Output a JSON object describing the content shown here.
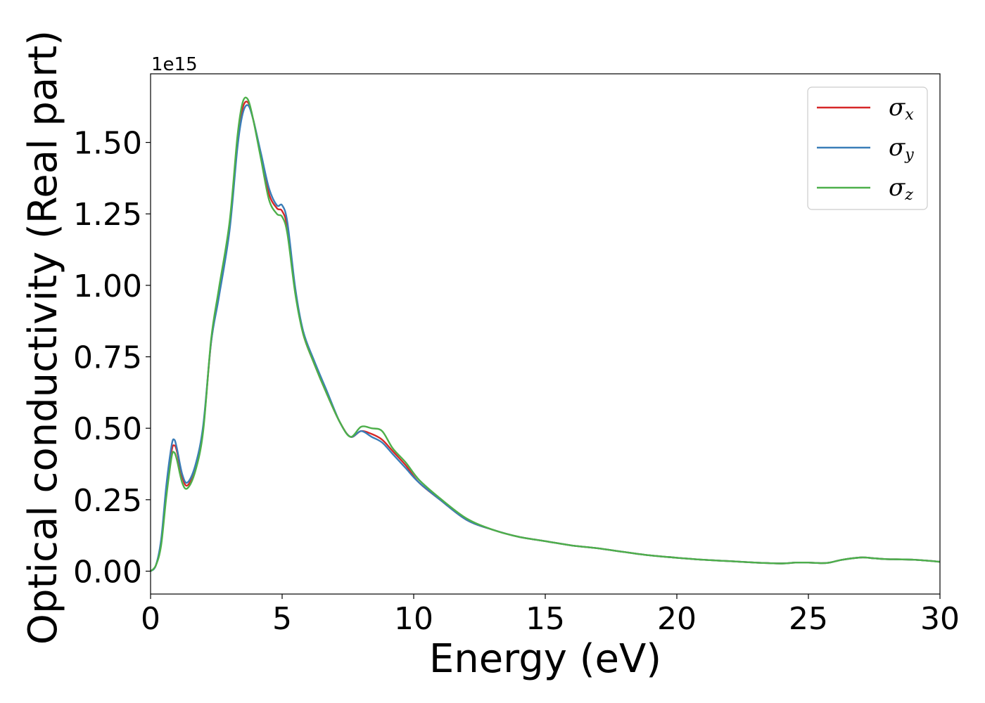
{
  "chart_data": {
    "type": "line",
    "xlabel": "Energy (eV)",
    "ylabel": "Optical conductivity (Real part)",
    "y_offset_text": "1e15",
    "xlim": [
      0,
      30
    ],
    "ylim": [
      -0.08,
      1.74
    ],
    "x_ticks": [
      0,
      5,
      10,
      15,
      20,
      25,
      30
    ],
    "x_tick_labels": [
      "0",
      "5",
      "10",
      "15",
      "20",
      "25",
      "30"
    ],
    "y_ticks": [
      0.0,
      0.25,
      0.5,
      0.75,
      1.0,
      1.25,
      1.5
    ],
    "y_tick_labels": [
      "0.00",
      "0.25",
      "0.50",
      "0.75",
      "1.00",
      "1.25",
      "1.50"
    ],
    "grid": false,
    "legend_position": "top-right",
    "series": [
      {
        "name": "σx",
        "legend_symbol": "σ",
        "legend_sub": "x",
        "color": "#d62728",
        "x": [
          0,
          0.2,
          0.4,
          0.6,
          0.8,
          0.9,
          1.0,
          1.2,
          1.4,
          1.7,
          2.0,
          2.3,
          2.6,
          3.0,
          3.3,
          3.5,
          3.7,
          3.9,
          4.2,
          4.5,
          4.8,
          5.0,
          5.2,
          5.5,
          5.8,
          6.2,
          6.7,
          7.2,
          7.6,
          8.0,
          8.4,
          8.8,
          9.2,
          9.7,
          10.2,
          11.0,
          12.0,
          13.0,
          14.0,
          15.0,
          16.0,
          17.0,
          18.0,
          19.0,
          20.0,
          21.0,
          22.0,
          23.0,
          24.0,
          24.5,
          25.0,
          25.5,
          25.8,
          26.3,
          27.0,
          27.5,
          28.0,
          29.0,
          30.0
        ],
        "y": [
          0.0,
          0.02,
          0.1,
          0.28,
          0.42,
          0.44,
          0.42,
          0.33,
          0.3,
          0.36,
          0.5,
          0.8,
          0.97,
          1.2,
          1.5,
          1.62,
          1.64,
          1.58,
          1.45,
          1.32,
          1.27,
          1.26,
          1.2,
          0.98,
          0.83,
          0.73,
          0.62,
          0.52,
          0.47,
          0.49,
          0.48,
          0.46,
          0.42,
          0.37,
          0.31,
          0.25,
          0.18,
          0.145,
          0.12,
          0.105,
          0.09,
          0.08,
          0.067,
          0.055,
          0.047,
          0.04,
          0.035,
          0.03,
          0.027,
          0.03,
          0.03,
          0.028,
          0.03,
          0.04,
          0.048,
          0.045,
          0.042,
          0.04,
          0.033
        ]
      },
      {
        "name": "σy",
        "legend_symbol": "σ",
        "legend_sub": "y",
        "color": "#3a7db8",
        "x": [
          0,
          0.2,
          0.4,
          0.6,
          0.8,
          0.9,
          1.0,
          1.2,
          1.4,
          1.7,
          2.0,
          2.3,
          2.6,
          3.0,
          3.3,
          3.5,
          3.7,
          3.9,
          4.2,
          4.5,
          4.8,
          5.0,
          5.2,
          5.5,
          5.8,
          6.2,
          6.7,
          7.2,
          7.6,
          8.0,
          8.4,
          8.8,
          9.2,
          9.7,
          10.2,
          11.0,
          12.0,
          13.0,
          14.0,
          15.0,
          16.0,
          17.0,
          18.0,
          19.0,
          20.0,
          21.0,
          22.0,
          23.0,
          24.0,
          24.5,
          25.0,
          25.5,
          25.8,
          26.3,
          27.0,
          27.5,
          28.0,
          29.0,
          30.0
        ],
        "y": [
          0.0,
          0.02,
          0.11,
          0.3,
          0.44,
          0.46,
          0.43,
          0.34,
          0.31,
          0.37,
          0.51,
          0.8,
          0.96,
          1.19,
          1.48,
          1.6,
          1.63,
          1.58,
          1.46,
          1.34,
          1.28,
          1.28,
          1.22,
          0.99,
          0.84,
          0.74,
          0.63,
          0.52,
          0.47,
          0.49,
          0.47,
          0.45,
          0.41,
          0.36,
          0.31,
          0.25,
          0.18,
          0.145,
          0.12,
          0.105,
          0.09,
          0.08,
          0.067,
          0.055,
          0.047,
          0.04,
          0.035,
          0.03,
          0.027,
          0.03,
          0.03,
          0.028,
          0.03,
          0.04,
          0.048,
          0.045,
          0.042,
          0.04,
          0.033
        ]
      },
      {
        "name": "σz",
        "legend_symbol": "σ",
        "legend_sub": "z",
        "color": "#4daf4a",
        "x": [
          0,
          0.2,
          0.4,
          0.6,
          0.8,
          0.9,
          1.0,
          1.2,
          1.4,
          1.7,
          2.0,
          2.3,
          2.6,
          3.0,
          3.3,
          3.5,
          3.7,
          3.9,
          4.2,
          4.5,
          4.8,
          5.0,
          5.2,
          5.5,
          5.8,
          6.2,
          6.7,
          7.2,
          7.6,
          8.0,
          8.4,
          8.8,
          9.2,
          9.7,
          10.2,
          11.0,
          12.0,
          13.0,
          14.0,
          15.0,
          16.0,
          17.0,
          18.0,
          19.0,
          20.0,
          21.0,
          22.0,
          23.0,
          24.0,
          24.5,
          25.0,
          25.5,
          25.8,
          26.3,
          27.0,
          27.5,
          28.0,
          29.0,
          30.0
        ],
        "y": [
          0.0,
          0.02,
          0.09,
          0.26,
          0.4,
          0.415,
          0.39,
          0.31,
          0.29,
          0.35,
          0.49,
          0.81,
          0.99,
          1.22,
          1.52,
          1.64,
          1.65,
          1.58,
          1.44,
          1.3,
          1.25,
          1.24,
          1.18,
          0.97,
          0.83,
          0.73,
          0.62,
          0.52,
          0.47,
          0.505,
          0.5,
          0.49,
          0.43,
          0.38,
          0.32,
          0.255,
          0.185,
          0.145,
          0.12,
          0.105,
          0.09,
          0.08,
          0.067,
          0.055,
          0.047,
          0.04,
          0.035,
          0.03,
          0.027,
          0.03,
          0.03,
          0.028,
          0.03,
          0.04,
          0.048,
          0.045,
          0.042,
          0.04,
          0.033
        ]
      }
    ]
  }
}
